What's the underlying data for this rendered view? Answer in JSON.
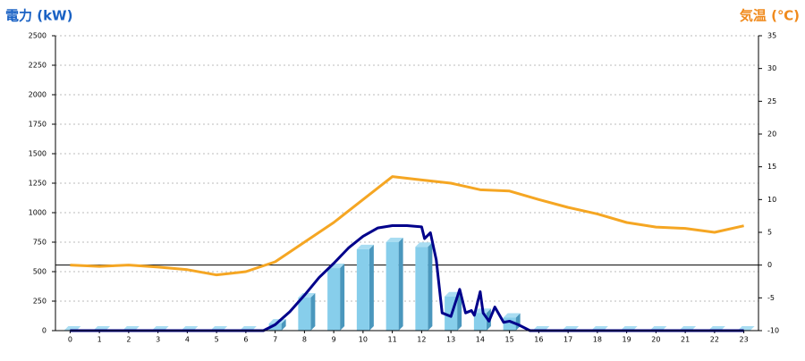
{
  "chart_data": {
    "type": "combo",
    "y_label": "電力 (kW)",
    "y2_label": "気温 (℃)",
    "xlim": [
      -0.5,
      23.5
    ],
    "xticks": [
      0,
      1,
      2,
      3,
      4,
      5,
      6,
      7,
      8,
      9,
      10,
      11,
      12,
      13,
      14,
      15,
      16,
      17,
      18,
      19,
      20,
      21,
      22,
      23
    ],
    "ylim": [
      0,
      2500
    ],
    "yticks": [
      0,
      250,
      500,
      750,
      1000,
      1250,
      1500,
      1750,
      2000,
      2250,
      2500
    ],
    "y2lim": [
      -10,
      35
    ],
    "y2ticks": [
      -10,
      -5,
      0,
      5,
      10,
      15,
      20,
      25,
      30,
      35
    ],
    "y2_reference_line": 0,
    "grid": true,
    "series": [
      {
        "type": "bar",
        "color": "#87ceeb",
        "x": [
          0,
          1,
          2,
          3,
          4,
          5,
          6,
          7,
          8,
          9,
          10,
          11,
          12,
          13,
          14,
          15,
          16,
          17,
          18,
          19,
          20,
          21,
          22,
          23
        ],
        "values": [
          0,
          0,
          0,
          0,
          0,
          0,
          0,
          60,
          280,
          530,
          690,
          750,
          710,
          290,
          150,
          110,
          0,
          0,
          0,
          0,
          0,
          0,
          0,
          0
        ]
      },
      {
        "type": "line",
        "axis": "y2",
        "color": "#f5a623",
        "x": [
          0,
          1,
          2,
          3,
          4,
          5,
          6,
          7,
          8,
          9,
          10,
          11,
          12,
          13,
          14,
          15,
          16,
          17,
          18,
          19,
          20,
          21,
          22,
          23
        ],
        "values": [
          0,
          -0.2,
          0,
          -0.3,
          -0.7,
          -1.5,
          -1,
          0.5,
          3.5,
          6.5,
          10,
          13.5,
          13,
          12.5,
          11.5,
          11.3,
          10,
          8.8,
          7.8,
          6.5,
          5.8,
          5.6,
          5,
          6
        ]
      },
      {
        "type": "line",
        "color": "#00008b",
        "x": [
          0,
          6.6,
          7,
          7.5,
          8,
          8.5,
          9,
          9.5,
          10,
          10.5,
          11,
          11.5,
          12,
          12.1,
          12.3,
          12.5,
          12.7,
          13,
          13.3,
          13.5,
          13.7,
          13.8,
          14,
          14.1,
          14.3,
          14.5,
          14.8,
          15,
          15.3,
          15.7,
          23
        ],
        "values": [
          0,
          0,
          50,
          160,
          300,
          450,
          570,
          700,
          800,
          870,
          890,
          890,
          880,
          780,
          830,
          600,
          150,
          120,
          350,
          150,
          170,
          130,
          330,
          150,
          80,
          200,
          70,
          80,
          50,
          0,
          0
        ]
      }
    ]
  }
}
